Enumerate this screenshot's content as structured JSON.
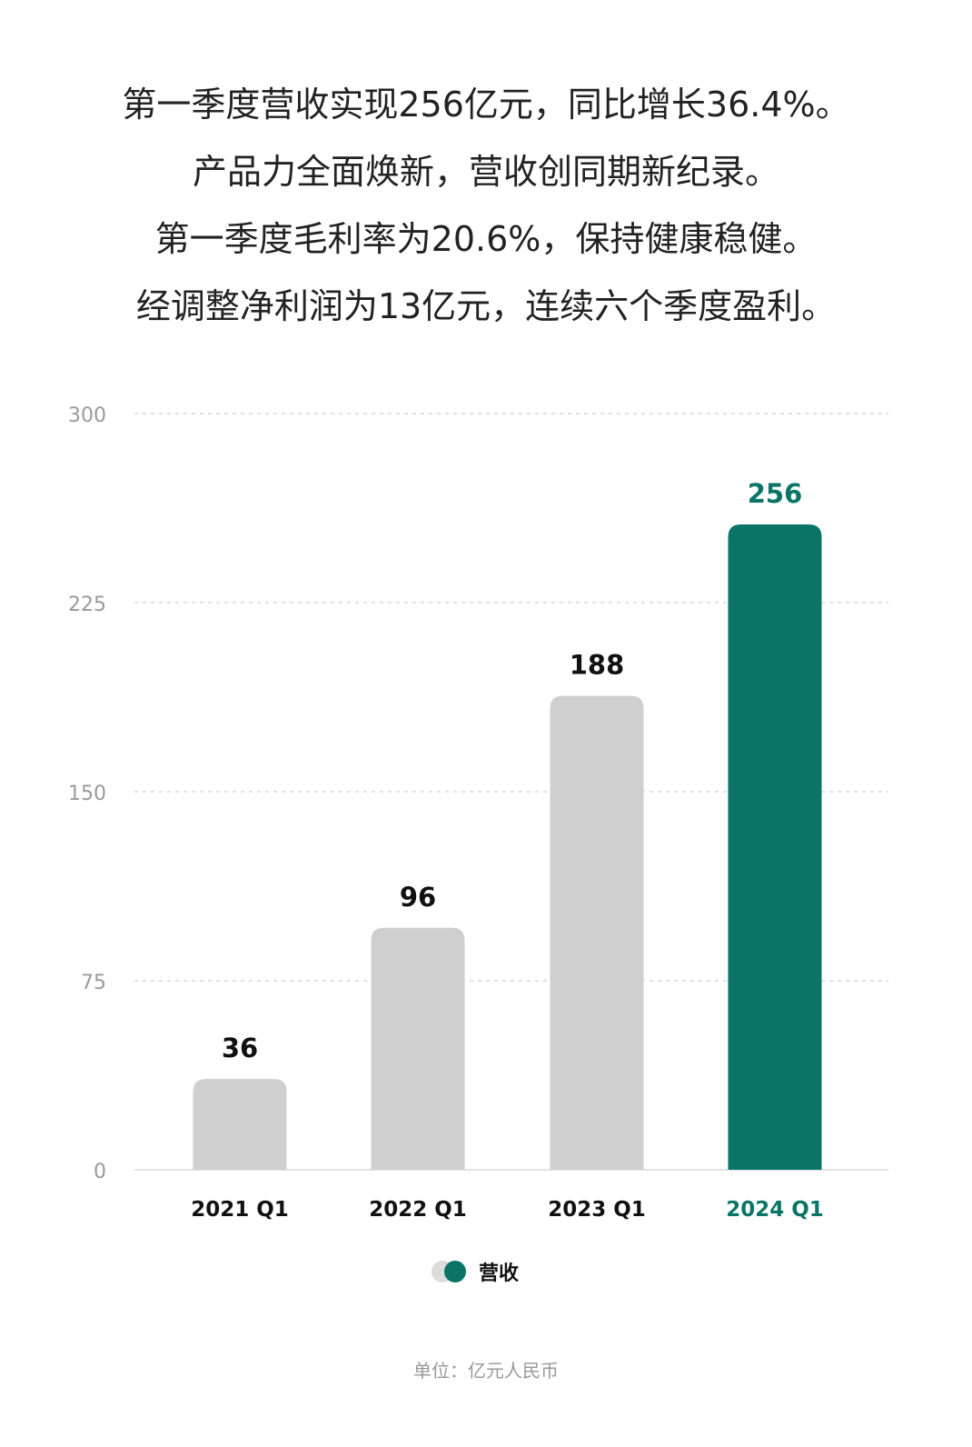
{
  "headline": [
    "第一季度营收实现256亿元，同比增长36.4%。",
    "产品力全面焕新，营收创同期新纪录。",
    "第一季度毛利率为20.6%，保持健康稳健。",
    "经调整净利润为13亿元，连续六个季度盈利。"
  ],
  "chart_data": {
    "type": "bar",
    "categories": [
      "2021 Q1",
      "2022 Q1",
      "2023 Q1",
      "2024 Q1"
    ],
    "series": [
      {
        "name": "营收",
        "values": [
          36,
          96,
          188,
          256
        ]
      }
    ],
    "ylim": [
      0,
      300
    ],
    "yticks": [
      0,
      75,
      150,
      225,
      300
    ],
    "grid": true,
    "legend_position": "bottom",
    "highlight_index": 3,
    "colors": {
      "default": "#cfcfcf",
      "highlight": "#0a7567",
      "label": "#111111",
      "axis": "#9a9a9a",
      "grid": "#d8d8d8"
    }
  },
  "footer": "单位：亿元人民币"
}
